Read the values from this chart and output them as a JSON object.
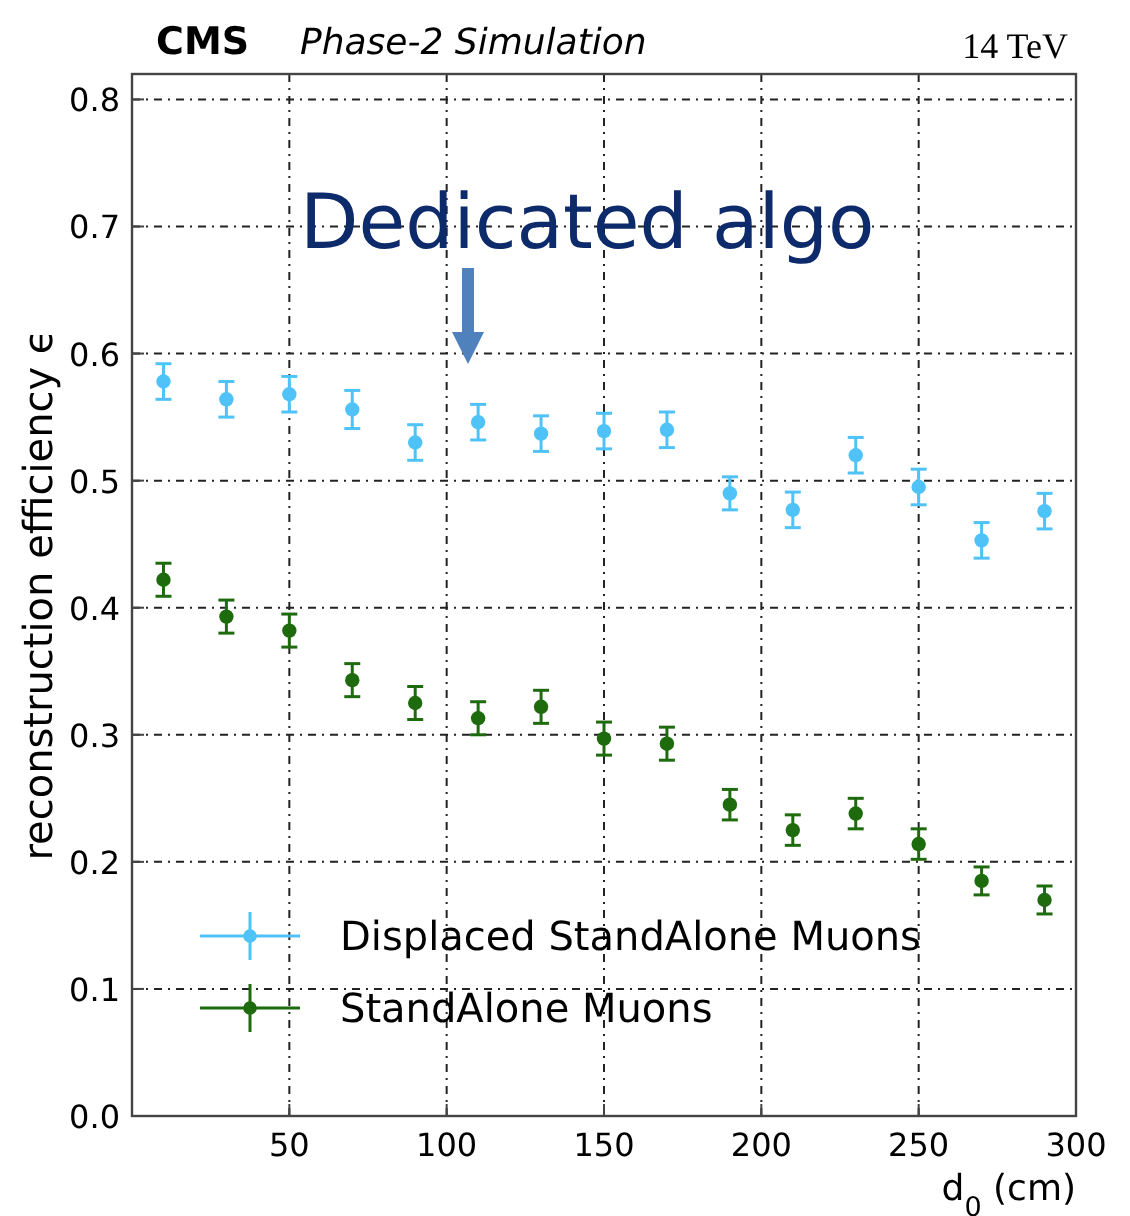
{
  "chart_data": {
    "type": "scatter",
    "title": "CMS",
    "subtitle": "Phase-2 Simulation",
    "xlabel": "d$_{0}$ (cm)",
    "ylabel": "reconstruction efficiency ϵ",
    "annotations": [
      "14 TeV",
      "Dedicated algo"
    ],
    "x": [
      10,
      30,
      50,
      70,
      90,
      110,
      130,
      150,
      170,
      190,
      210,
      230,
      250,
      270,
      290
    ],
    "series": [
      {
        "name": "Displaced StandAlone Muons",
        "color": "#4fc3f7",
        "values": [
          0.578,
          0.564,
          0.568,
          0.556,
          0.53,
          0.546,
          0.537,
          0.539,
          0.54,
          0.49,
          0.477,
          0.52,
          0.495,
          0.453,
          0.476
        ],
        "errors": [
          0.014,
          0.014,
          0.014,
          0.015,
          0.014,
          0.014,
          0.014,
          0.014,
          0.014,
          0.013,
          0.014,
          0.014,
          0.014,
          0.014,
          0.014
        ]
      },
      {
        "name": "StandAlone Muons",
        "color": "#1e6b0e",
        "values": [
          0.422,
          0.393,
          0.382,
          0.343,
          0.325,
          0.313,
          0.322,
          0.297,
          0.293,
          0.245,
          0.225,
          0.238,
          0.214,
          0.185,
          0.17
        ],
        "errors": [
          0.013,
          0.013,
          0.013,
          0.013,
          0.013,
          0.013,
          0.013,
          0.013,
          0.013,
          0.012,
          0.012,
          0.012,
          0.012,
          0.011,
          0.011
        ]
      }
    ],
    "xlim": [
      0,
      300
    ],
    "xticks": [
      50,
      100,
      150,
      200,
      250,
      300
    ],
    "ylim": [
      0,
      0.82
    ],
    "yticks": [
      {
        "value": 0,
        "label": "0.0"
      },
      0.1,
      0.2,
      0.3,
      0.4,
      0.5,
      0.6,
      0.7,
      0.8
    ],
    "grid": true,
    "legend": "bottom left",
    "marker": "circle"
  }
}
